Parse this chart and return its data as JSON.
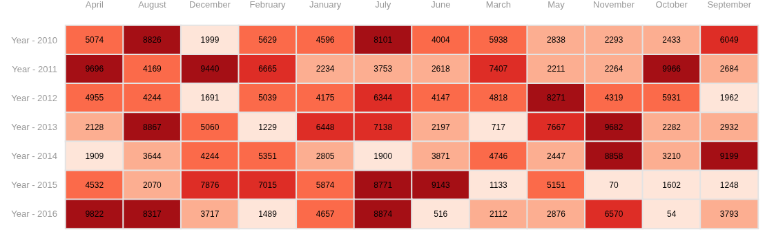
{
  "chart_data": {
    "type": "heatmap",
    "categories": [
      "April",
      "August",
      "December",
      "February",
      "January",
      "July",
      "June",
      "March",
      "May",
      "November",
      "October",
      "September"
    ],
    "y_categories": [
      "Year - 2010",
      "Year - 2011",
      "Year - 2012",
      "Year - 2013",
      "Year - 2014",
      "Year - 2015",
      "Year - 2016"
    ],
    "cells": [
      [
        5074,
        8826,
        1999,
        5629,
        4596,
        8101,
        4004,
        5938,
        2838,
        2293,
        2433,
        6049
      ],
      [
        9696,
        4169,
        9440,
        6665,
        2234,
        3753,
        2618,
        7407,
        2211,
        2264,
        9966,
        2684
      ],
      [
        4955,
        4244,
        1691,
        5039,
        4175,
        6344,
        4147,
        4818,
        8271,
        4319,
        5931,
        1962
      ],
      [
        2128,
        8867,
        5060,
        1229,
        6448,
        7138,
        2197,
        717,
        7667,
        9682,
        2282,
        2932
      ],
      [
        1909,
        3644,
        4244,
        5351,
        2805,
        1900,
        3871,
        4746,
        2447,
        8858,
        3210,
        9199
      ],
      [
        4532,
        2070,
        7876,
        7015,
        5874,
        8771,
        9143,
        1133,
        5151,
        70,
        1602,
        1248
      ],
      [
        9822,
        8317,
        3717,
        1489,
        4657,
        8874,
        516,
        2112,
        2876,
        6570,
        54,
        3793
      ]
    ],
    "colors": [
      [
        "#fb6a4a",
        "#a50f15",
        "#fee5d9",
        "#fb6a4a",
        "#fb6a4a",
        "#a50f15",
        "#fb6a4a",
        "#fb6a4a",
        "#fcae91",
        "#fcae91",
        "#fcae91",
        "#de2d26"
      ],
      [
        "#a50f15",
        "#fb6a4a",
        "#a50f15",
        "#de2d26",
        "#fcae91",
        "#fcae91",
        "#fcae91",
        "#de2d26",
        "#fcae91",
        "#fcae91",
        "#a50f15",
        "#fcae91"
      ],
      [
        "#fb6a4a",
        "#fb6a4a",
        "#fee5d9",
        "#fb6a4a",
        "#fb6a4a",
        "#de2d26",
        "#fb6a4a",
        "#fb6a4a",
        "#a50f15",
        "#fb6a4a",
        "#fb6a4a",
        "#fee5d9"
      ],
      [
        "#fcae91",
        "#a50f15",
        "#fb6a4a",
        "#fee5d9",
        "#de2d26",
        "#de2d26",
        "#fcae91",
        "#fee5d9",
        "#de2d26",
        "#a50f15",
        "#fcae91",
        "#fcae91"
      ],
      [
        "#fee5d9",
        "#fcae91",
        "#fb6a4a",
        "#fb6a4a",
        "#fcae91",
        "#fee5d9",
        "#fcae91",
        "#fb6a4a",
        "#fcae91",
        "#a50f15",
        "#fcae91",
        "#a50f15"
      ],
      [
        "#fb6a4a",
        "#fcae91",
        "#de2d26",
        "#de2d26",
        "#fb6a4a",
        "#a50f15",
        "#a50f15",
        "#fee5d9",
        "#fb6a4a",
        "#fee5d9",
        "#fee5d9",
        "#fee5d9"
      ],
      [
        "#a50f15",
        "#a50f15",
        "#fcae91",
        "#fee5d9",
        "#fb6a4a",
        "#a50f15",
        "#fee5d9",
        "#fcae91",
        "#fcae91",
        "#de2d26",
        "#fee5d9",
        "#fcae91"
      ]
    ],
    "data_labels": true
  }
}
